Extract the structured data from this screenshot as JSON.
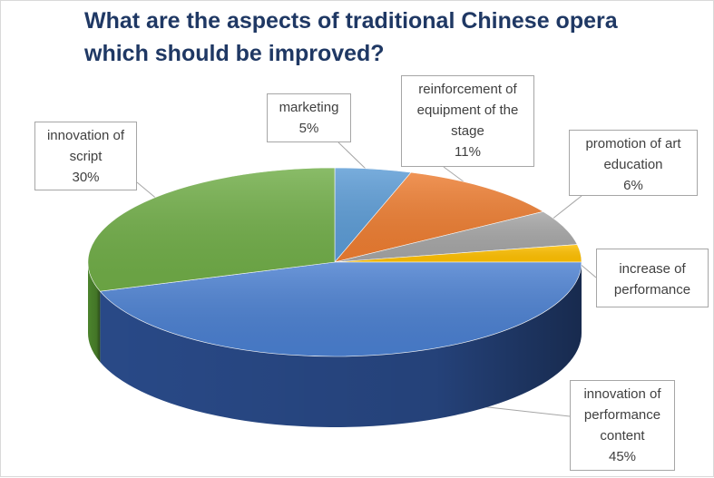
{
  "chart_data": {
    "type": "pie",
    "title_lines": [
      "What are the aspects of traditional Chinese opera",
      "which should be improved?"
    ],
    "slices": [
      {
        "label_lines": [
          "marketing"
        ],
        "value": 5,
        "value_label": "5%",
        "color": "#5b9bd5",
        "side": "#3e78b0"
      },
      {
        "label_lines": [
          "reinforcement of",
          "equipment of the",
          "stage"
        ],
        "value": 11,
        "value_label": "11%",
        "color": "#ed7d31",
        "side": "#c35f1b"
      },
      {
        "label_lines": [
          "promotion of art",
          "education"
        ],
        "value": 6,
        "value_label": "6%",
        "color": "#a5a5a5",
        "side": "#808080"
      },
      {
        "label_lines": [
          "increase of",
          "performance"
        ],
        "value": 3,
        "value_label": "",
        "color": "#ffc000",
        "side": "#d49f00"
      },
      {
        "label_lines": [
          "innovation of",
          "performance",
          "content"
        ],
        "value": 45,
        "value_label": "45%",
        "color": "#4a7fd0",
        "side": "#2b4d8e"
      },
      {
        "label_lines": [
          "innovation of",
          "script"
        ],
        "value": 30,
        "value_label": "30%",
        "color": "#70ad47",
        "side": "#4f8a2e"
      }
    ],
    "legend": "none",
    "style": "3d-exploded-none"
  }
}
